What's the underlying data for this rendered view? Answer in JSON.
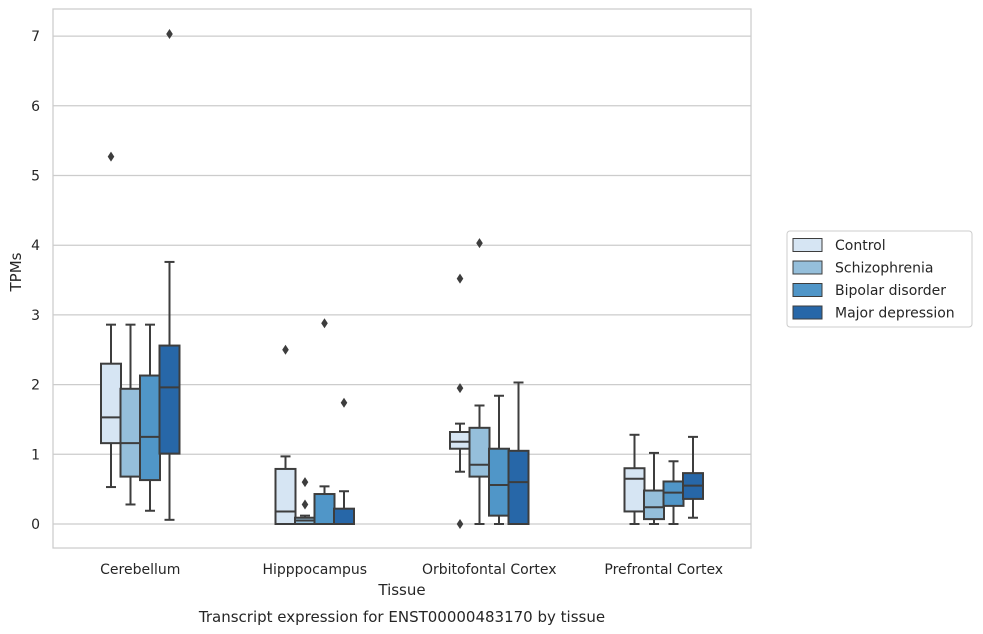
{
  "chart_data": {
    "type": "box",
    "ylabel": "TPMs",
    "xlabel": "Tissue",
    "caption": "Transcript expression for ENST00000483170 by tissue",
    "ylim": [
      -0.35,
      7.4
    ],
    "yticks": [
      0,
      1,
      2,
      3,
      4,
      5,
      6,
      7
    ],
    "grid": "horizontal",
    "legend_position": "right",
    "categories": [
      "Cerebellum",
      "Hipppocampus",
      "Orbitofontal Cortex",
      "Prefrontal Cortex"
    ],
    "series": [
      {
        "name": "Control",
        "color": "#d6e5f3",
        "boxes": [
          {
            "whislo": 0.53,
            "q1": 1.16,
            "med": 1.53,
            "q3": 2.3,
            "whishi": 2.86,
            "fliers": [
              5.27
            ]
          },
          {
            "whislo": 0.0,
            "q1": 0.0,
            "med": 0.18,
            "q3": 0.79,
            "whishi": 0.97,
            "fliers": [
              2.5
            ]
          },
          {
            "whislo": 0.75,
            "q1": 1.08,
            "med": 1.18,
            "q3": 1.32,
            "whishi": 1.44,
            "fliers": [
              3.52,
              1.95,
              0.0
            ]
          },
          {
            "whislo": 0.0,
            "q1": 0.18,
            "med": 0.65,
            "q3": 0.8,
            "whishi": 1.28,
            "fliers": []
          }
        ]
      },
      {
        "name": "Schizophrenia",
        "color": "#95bfdb",
        "boxes": [
          {
            "whislo": 0.28,
            "q1": 0.68,
            "med": 1.16,
            "q3": 1.94,
            "whishi": 2.86,
            "fliers": []
          },
          {
            "whislo": 0.0,
            "q1": 0.0,
            "med": 0.05,
            "q3": 0.09,
            "whishi": 0.12,
            "fliers": [
              0.6,
              0.28
            ]
          },
          {
            "whislo": 0.0,
            "q1": 0.68,
            "med": 0.85,
            "q3": 1.38,
            "whishi": 1.7,
            "fliers": [
              4.03
            ]
          },
          {
            "whislo": 0.0,
            "q1": 0.07,
            "med": 0.24,
            "q3": 0.48,
            "whishi": 1.02,
            "fliers": []
          }
        ]
      },
      {
        "name": "Bipolar disorder",
        "color": "#5096c8",
        "boxes": [
          {
            "whislo": 0.19,
            "q1": 0.63,
            "med": 1.25,
            "q3": 2.13,
            "whishi": 2.86,
            "fliers": []
          },
          {
            "whislo": 0.0,
            "q1": 0.0,
            "med": 0.0,
            "q3": 0.43,
            "whishi": 0.54,
            "fliers": [
              2.88
            ]
          },
          {
            "whislo": 0.0,
            "q1": 0.12,
            "med": 0.56,
            "q3": 1.08,
            "whishi": 1.84,
            "fliers": []
          },
          {
            "whislo": 0.0,
            "q1": 0.26,
            "med": 0.45,
            "q3": 0.61,
            "whishi": 0.9,
            "fliers": []
          }
        ]
      },
      {
        "name": "Major depression",
        "color": "#2767a8",
        "boxes": [
          {
            "whislo": 0.06,
            "q1": 1.01,
            "med": 1.96,
            "q3": 2.56,
            "whishi": 3.76,
            "fliers": [
              7.03
            ]
          },
          {
            "whislo": 0.0,
            "q1": 0.0,
            "med": 0.0,
            "q3": 0.22,
            "whishi": 0.47,
            "fliers": [
              1.74
            ]
          },
          {
            "whislo": 0.0,
            "q1": 0.0,
            "med": 0.6,
            "q3": 1.05,
            "whishi": 2.03,
            "fliers": []
          },
          {
            "whislo": 0.09,
            "q1": 0.36,
            "med": 0.55,
            "q3": 0.73,
            "whishi": 1.25,
            "fliers": []
          }
        ]
      }
    ]
  }
}
